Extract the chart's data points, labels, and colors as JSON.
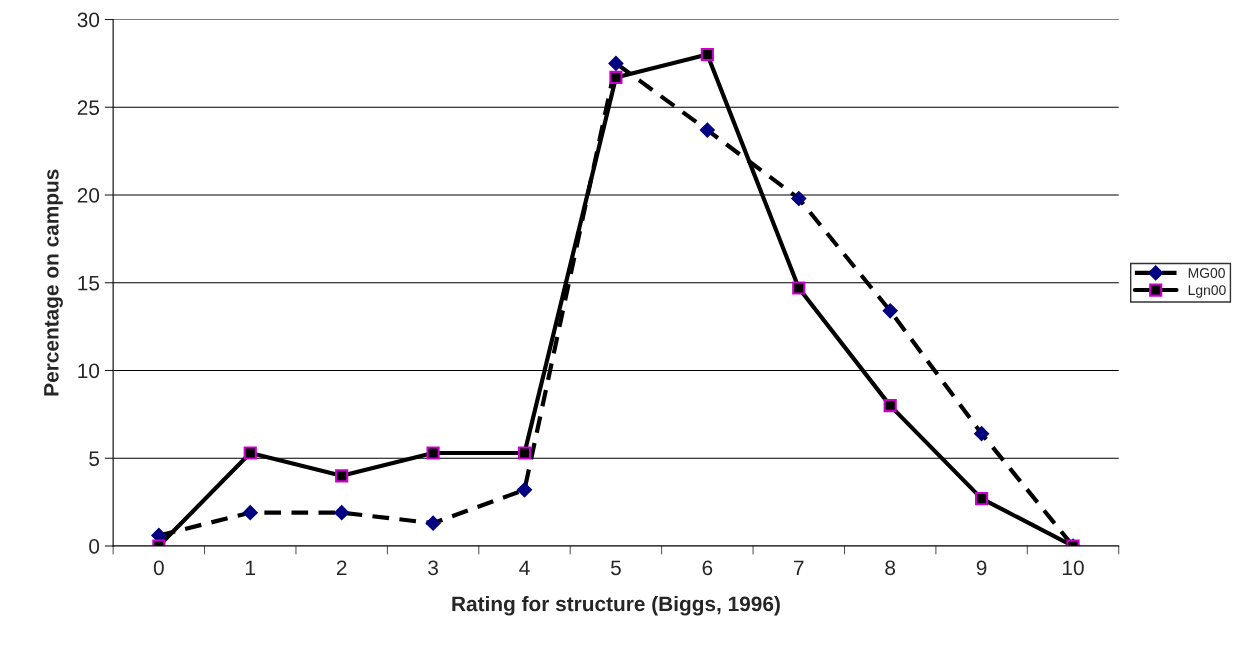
{
  "chart_data": {
    "type": "line",
    "xlabel": "Rating for structure (Biggs, 1996)",
    "ylabel": "Percentage on campus",
    "categories": [
      "0",
      "1",
      "2",
      "3",
      "4",
      "5",
      "6",
      "7",
      "8",
      "9",
      "10"
    ],
    "series": [
      {
        "name": "MG00",
        "color": "#000080",
        "marker": "diamond",
        "line_style": "dashed",
        "values": [
          0.6,
          1.9,
          1.9,
          1.3,
          3.2,
          27.5,
          23.7,
          19.8,
          13.4,
          6.4,
          0
        ]
      },
      {
        "name": "Lgn00",
        "color": "#000000",
        "marker": "square",
        "line_style": "solid",
        "values": [
          0,
          5.3,
          4.0,
          5.3,
          5.3,
          26.7,
          28.0,
          14.7,
          8.0,
          2.7,
          0
        ]
      }
    ],
    "ylim": [
      0,
      30
    ],
    "yticks": [
      0,
      5,
      10,
      15,
      20,
      25,
      30
    ],
    "grid": "y",
    "legend": "right"
  }
}
